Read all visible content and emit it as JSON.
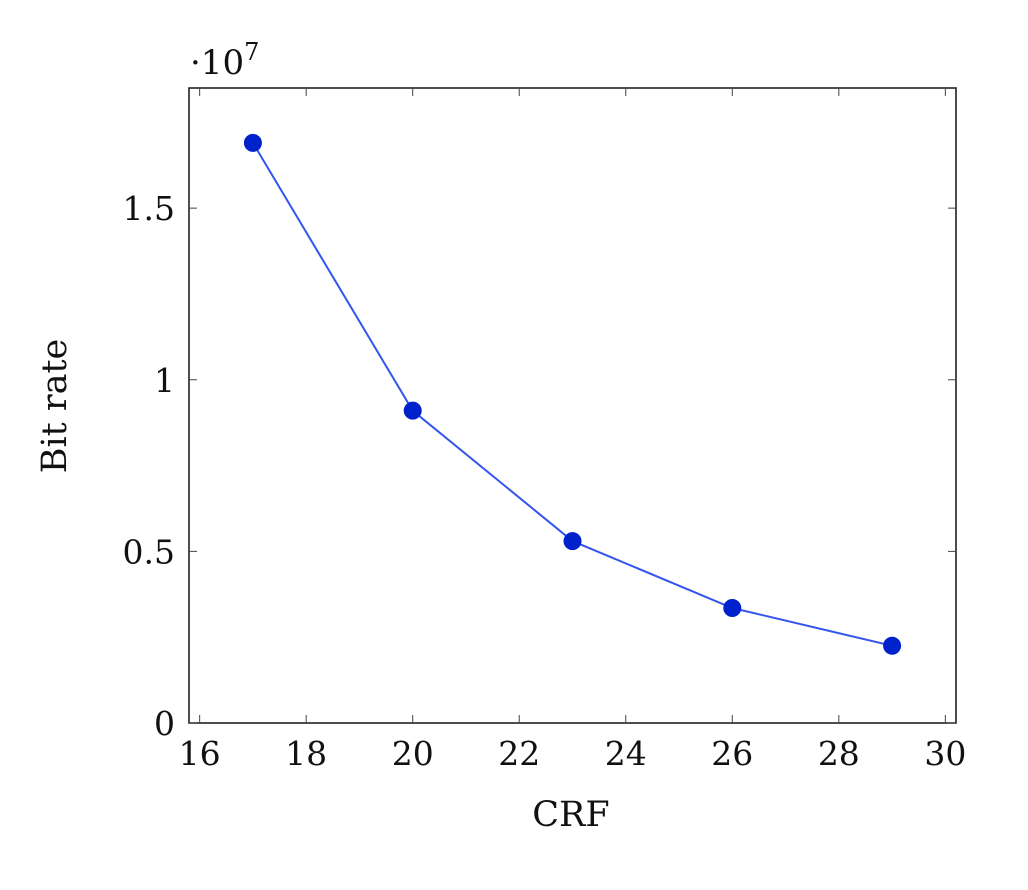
{
  "chart_data": {
    "type": "line",
    "xlabel": "CRF",
    "ylabel": "Bit rate",
    "x": [
      17,
      20,
      23,
      26,
      29
    ],
    "series": [
      {
        "values": [
          16900000,
          9100000,
          5300000,
          3350000,
          2250000
        ]
      }
    ],
    "xlim": [
      15.8,
      30.2
    ],
    "ylim": [
      0,
      18500000
    ],
    "xticks": [
      16,
      18,
      20,
      22,
      24,
      26,
      28,
      30
    ],
    "yticks": [
      0,
      5000000,
      10000000,
      15000000
    ],
    "ytick_labels": [
      "0",
      "0.5",
      "1",
      "1.5"
    ],
    "y_exponent_label": "·10",
    "y_exponent_power": "7",
    "grid": false,
    "colors": {
      "line": "#3355ee",
      "marker": "#0022cc",
      "frame": "#222222"
    }
  }
}
